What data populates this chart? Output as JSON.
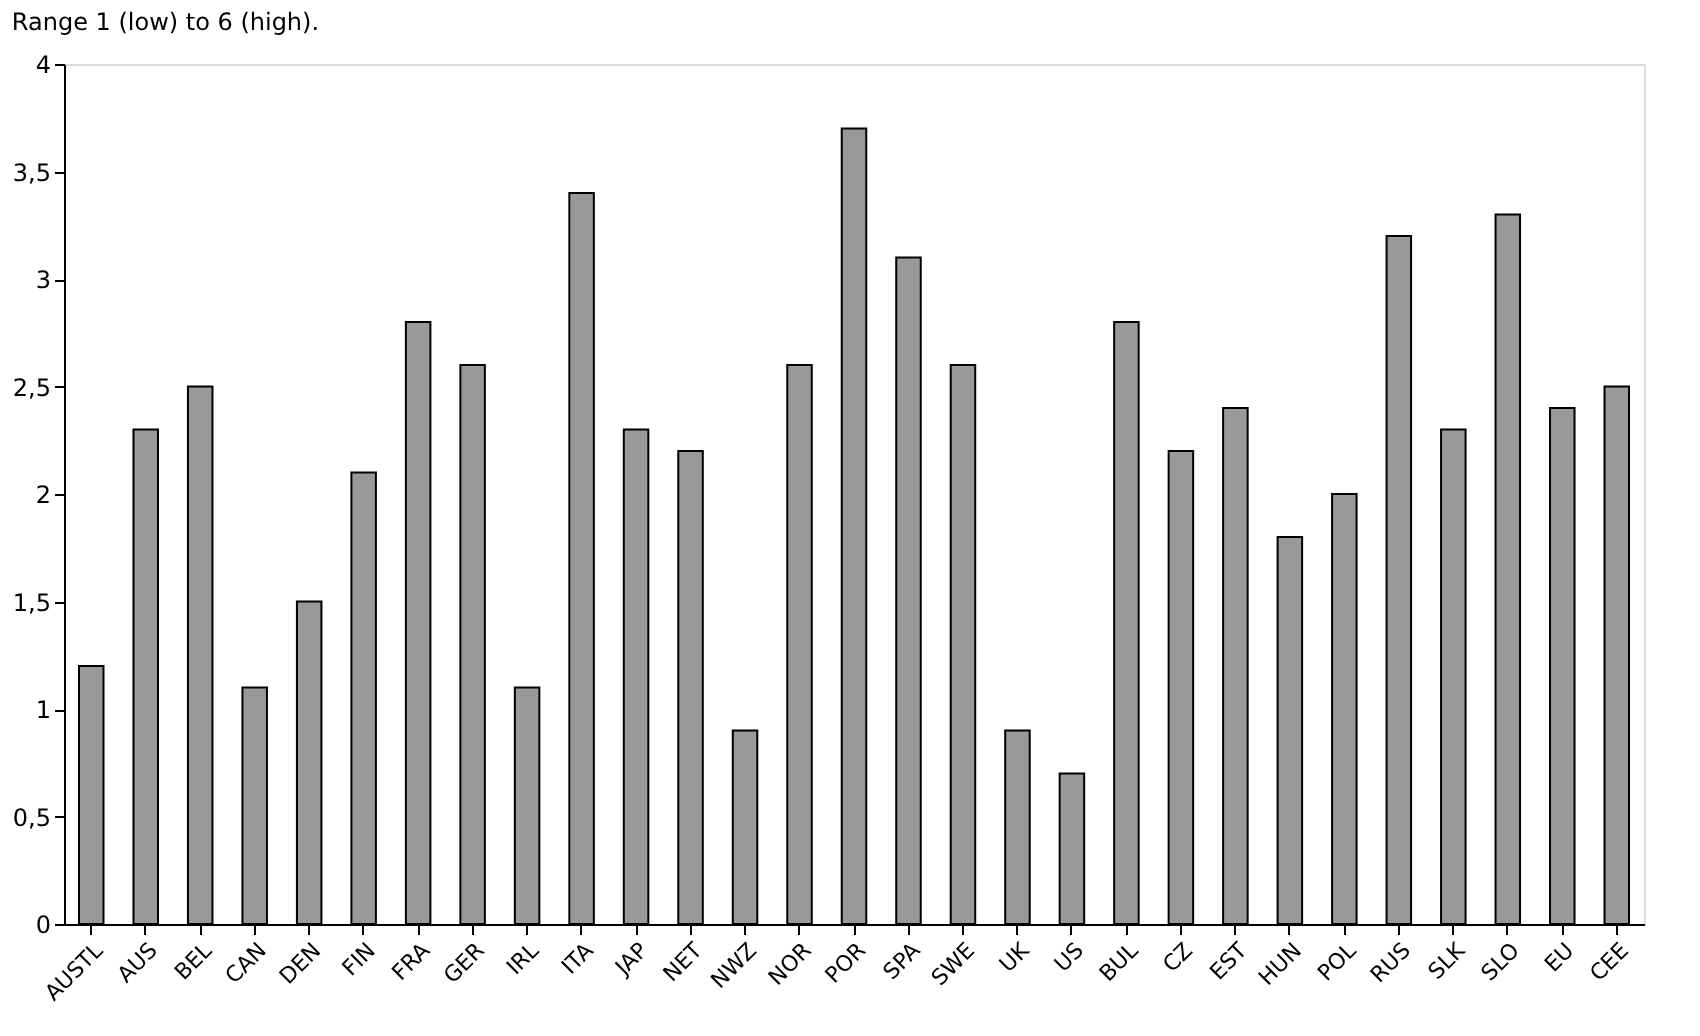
{
  "chart_data": {
    "type": "bar",
    "title": "Range 1 (low) to 6 (high).",
    "categories": [
      "AUSTL",
      "AUS",
      "BEL",
      "CAN",
      "DEN",
      "FIN",
      "FRA",
      "GER",
      "IRL",
      "ITA",
      "JAP",
      "NET",
      "NWZ",
      "NOR",
      "POR",
      "SPA",
      "SWE",
      "UK",
      "US",
      "BUL",
      "CZ",
      "EST",
      "HUN",
      "POL",
      "RUS",
      "SLK",
      "SLO",
      "EU",
      "CEE"
    ],
    "values": [
      1.2,
      2.3,
      2.5,
      1.1,
      1.5,
      2.1,
      2.8,
      2.6,
      1.1,
      3.4,
      2.3,
      2.2,
      0.9,
      2.6,
      3.7,
      3.1,
      2.6,
      0.9,
      0.7,
      2.8,
      2.2,
      2.4,
      1.8,
      2.0,
      3.2,
      2.3,
      3.3,
      2.4,
      2.5
    ],
    "color": "#999999",
    "ylim": [
      0,
      4
    ],
    "yticks": [
      0,
      {
        "value": 0.5,
        "label": "0,5"
      },
      1,
      {
        "value": 1.5,
        "label": "1,5"
      },
      2,
      {
        "value": 2.5,
        "label": "2,5"
      },
      3,
      {
        "value": 3.5,
        "label": "3,5"
      },
      4
    ],
    "grid": false
  }
}
